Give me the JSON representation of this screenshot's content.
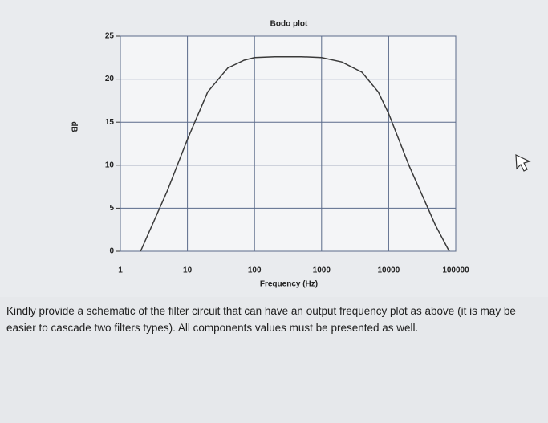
{
  "chart_data": {
    "type": "line",
    "title": "Bodo plot",
    "xlabel": "Frequency (Hz)",
    "ylabel": "dB",
    "x": [
      2,
      5,
      10,
      20,
      40,
      70,
      100,
      200,
      500,
      1000,
      2000,
      4000,
      7000,
      10000,
      20000,
      50000,
      80000
    ],
    "values": [
      0,
      7,
      13,
      18.5,
      21.3,
      22.2,
      22.5,
      22.6,
      22.6,
      22.5,
      22,
      20.8,
      18.5,
      16,
      10,
      3,
      0
    ],
    "color": "#3a3a3a",
    "xlog": true,
    "grid": true,
    "xlim": [
      1,
      100000
    ],
    "xticks": [
      1,
      10,
      100,
      1000,
      10000,
      100000
    ],
    "ylim": [
      0,
      25
    ],
    "yticks": [
      0,
      5,
      10,
      15,
      20,
      25
    ]
  },
  "question": {
    "text": "Kindly provide a schematic of the filter circuit that can have an output frequency plot as above (it is may be easier to cascade two filters types). All components values must be presented as well."
  }
}
